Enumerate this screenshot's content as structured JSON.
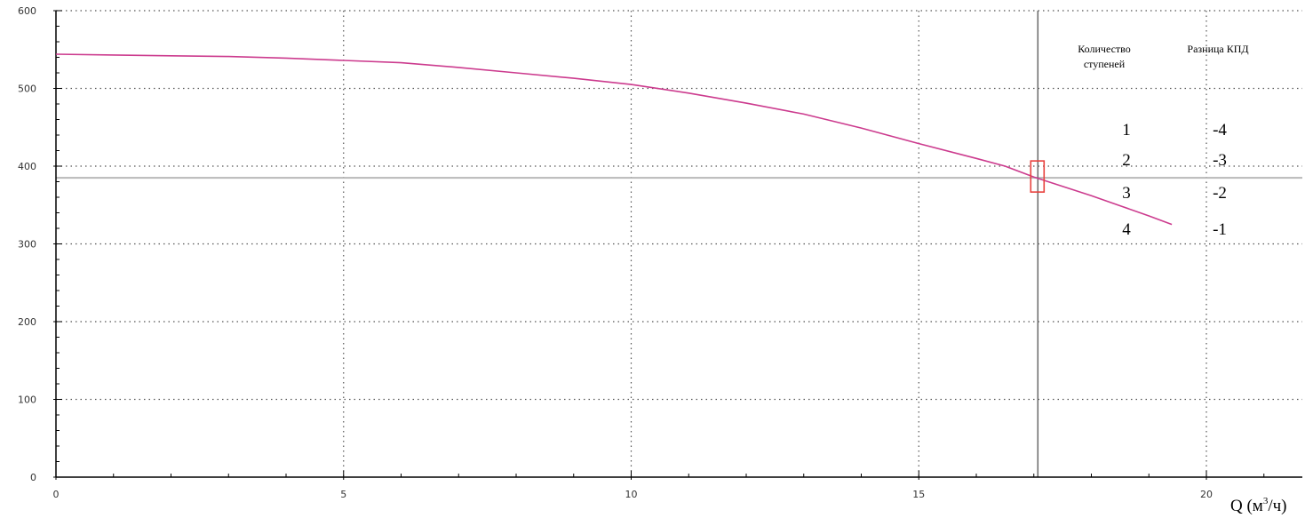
{
  "chart_data": {
    "type": "line",
    "title": "",
    "xlabel": "Q (м³/ч)",
    "xlabel_main": "Q (м",
    "xlabel_sup": "3",
    "xlabel_end": "/ч)",
    "ylabel": "",
    "xlim": [
      0,
      21.8
    ],
    "ylim": [
      0,
      600
    ],
    "x_ticks": [
      0,
      5,
      10,
      15,
      20
    ],
    "x_tick_labels": [
      "0",
      "5",
      "10",
      "15",
      "20"
    ],
    "y_ticks": [
      0,
      100,
      200,
      300,
      400,
      500,
      600
    ],
    "y_tick_labels": [
      "0",
      "100",
      "200",
      "300",
      "400",
      "500",
      "600"
    ],
    "grid": true,
    "series": [
      {
        "color": "#cc3b8e",
        "x": [
          0,
          1,
          2,
          3,
          4,
          5,
          6,
          7,
          8,
          9,
          10,
          11,
          12,
          13,
          14,
          15,
          16,
          16.5,
          17,
          17.5,
          18,
          18.5,
          19,
          19.4
        ],
        "y": [
          544,
          543,
          542,
          541,
          539,
          536,
          533,
          527,
          520,
          513,
          505,
          494,
          481,
          467,
          449,
          429,
          410,
          400,
          386,
          374,
          362,
          349,
          336,
          325
        ]
      }
    ],
    "operating_point": {
      "x": 17.07,
      "y": 385
    },
    "reference_lines": {
      "vertical_x": 17.07,
      "horizontal_y": 385
    }
  },
  "table": {
    "header_stages": [
      "Количество",
      "ступеней"
    ],
    "header_eff": "Разница КПД",
    "rows": [
      {
        "stages": "1",
        "eff": "-4"
      },
      {
        "stages": "2",
        "eff": "-3"
      },
      {
        "stages": "3",
        "eff": "-2"
      },
      {
        "stages": "4",
        "eff": "-1"
      }
    ]
  },
  "colors": {
    "curve": "#cc3b8e",
    "marker": "#e8413d",
    "axis": "#000000",
    "grid": "#555555",
    "reference_vertical": "#6a6a6a",
    "reference_horizontal": "#b8b8b8"
  }
}
